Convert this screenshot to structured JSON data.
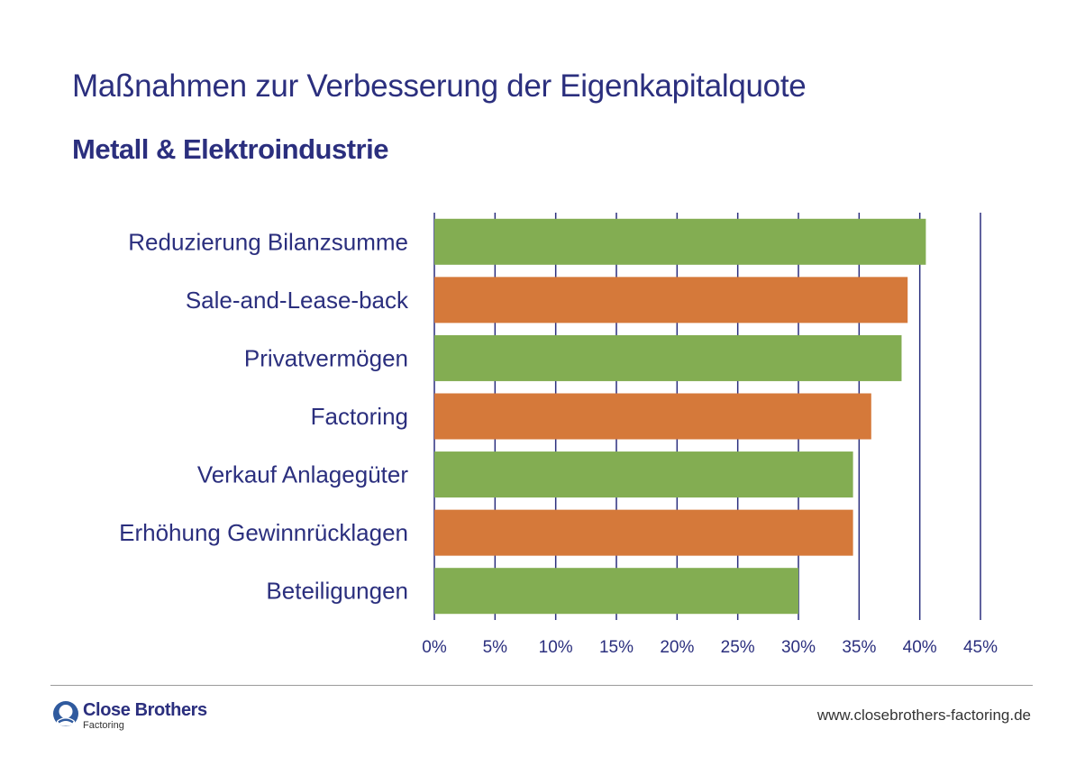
{
  "title": "Maßnahmen zur Verbesserung der Eigenkapitalquote",
  "subtitle": "Metall & Elektroindustrie",
  "chart_data": {
    "type": "bar",
    "orientation": "horizontal",
    "categories": [
      "Reduzierung Bilanzsumme",
      "Sale-and-Lease-back",
      "Privatvermögen",
      "Factoring",
      "Verkauf Anlagegüter",
      "Erhöhung Gewinnrücklagen",
      "Beteiligungen"
    ],
    "values": [
      40.5,
      39,
      38.5,
      36,
      34.5,
      34.5,
      30
    ],
    "bar_colors": [
      "#83ad52",
      "#d5793a",
      "#83ad52",
      "#d5793a",
      "#83ad52",
      "#d5793a",
      "#83ad52"
    ],
    "xlim": [
      0,
      45
    ],
    "xticks": [
      0,
      5,
      10,
      15,
      20,
      25,
      30,
      35,
      40,
      45
    ],
    "xtick_labels": [
      "0%",
      "5%",
      "10%",
      "15%",
      "20%",
      "25%",
      "30%",
      "35%",
      "40%",
      "45%"
    ],
    "grid": true,
    "grid_color": "#2b2f7e"
  },
  "footer": {
    "brand_name": "Close Brothers",
    "brand_sub": "Factoring",
    "url": "www.closebrothers-factoring.de",
    "brand_color": "#2b2f7e"
  }
}
